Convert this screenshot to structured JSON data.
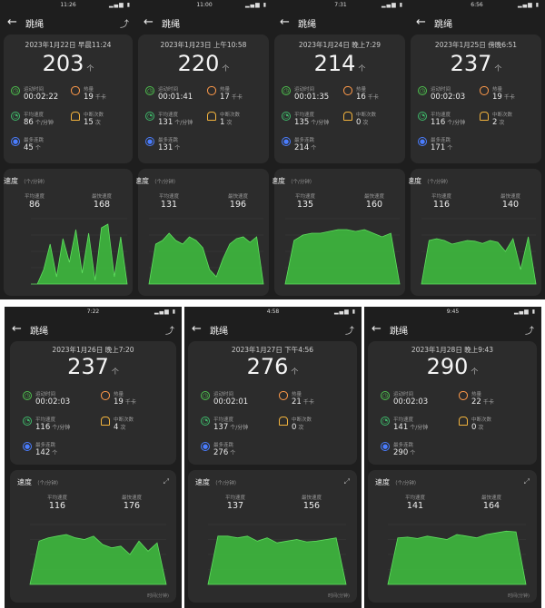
{
  "app": {
    "title": "跳绳"
  },
  "labels": {
    "duration": "运动时间",
    "calories": "热量",
    "avg_speed": "平均速度",
    "interruptions": "中断次数",
    "max_streak": "最多连跳",
    "speed_title": "速度",
    "speed_unit": "（个/分钟）",
    "avg_label": "平均速度",
    "max_label": "最快速度",
    "per_min": "个/分钟",
    "count_unit": "个",
    "kcal": "千卡",
    "times": "次",
    "x_axis_unit": "时间(分钟)",
    "y_axis_unit": "速度"
  },
  "sessions": [
    {
      "time": "11:26",
      "date": "2023年1月22日 早晨11:24",
      "count": "203",
      "duration": "00:02:22",
      "calories": "19",
      "avg_speed": "86",
      "interruptions": "15",
      "max_streak": "45",
      "chart_avg": "86",
      "chart_max": "168",
      "chart_data": {
        "type": "area",
        "x_unit": "分钟",
        "y_max": 180,
        "values": [
          0,
          0,
          40,
          110,
          20,
          125,
          60,
          150,
          30,
          140,
          10,
          155,
          165,
          20,
          130,
          0
        ]
      }
    },
    {
      "time": "11:00",
      "date": "2023年1月23日 上午10:58",
      "count": "220",
      "duration": "00:01:41",
      "calories": "17",
      "avg_speed": "131",
      "interruptions": "1",
      "max_streak": "131",
      "chart_avg": "131",
      "chart_max": "196",
      "chart_data": {
        "type": "area",
        "values": [
          0,
          110,
          120,
          140,
          120,
          110,
          130,
          120,
          100,
          40,
          20,
          70,
          110,
          125,
          130,
          115,
          130,
          0
        ]
      }
    },
    {
      "time": "7:31",
      "date": "2023年1月24日 晚上7:29",
      "count": "214",
      "duration": "00:01:35",
      "calories": "16",
      "avg_speed": "135",
      "interruptions": "0",
      "max_streak": "214",
      "chart_avg": "135",
      "chart_max": "160",
      "chart_data": {
        "type": "area",
        "values": [
          0,
          120,
          135,
          140,
          140,
          145,
          150,
          150,
          145,
          150,
          140,
          130,
          140,
          0
        ]
      }
    },
    {
      "time": "6:56",
      "date": "2023年1月25日 傍晚6:51",
      "count": "237",
      "duration": "00:02:03",
      "calories": "19",
      "avg_speed": "116",
      "interruptions": "2",
      "max_streak": "171",
      "chart_avg": "116",
      "chart_max": "140",
      "chart_data": {
        "type": "area",
        "values": [
          0,
          120,
          125,
          120,
          110,
          115,
          120,
          118,
          112,
          120,
          115,
          90,
          125,
          40,
          130,
          0
        ]
      }
    },
    {
      "time": "7:22",
      "date": "2023年1月26日 晚上7:20",
      "count": "237",
      "duration": "00:02:03",
      "calories": "19",
      "avg_speed": "116",
      "interruptions": "4",
      "max_streak": "142",
      "chart_avg": "116",
      "chart_max": "176",
      "chart_data": {
        "type": "area",
        "values": [
          0,
          130,
          140,
          145,
          150,
          140,
          135,
          145,
          120,
          110,
          115,
          90,
          130,
          100,
          125,
          0
        ]
      }
    },
    {
      "time": "4:58",
      "date": "2023年1月27日 下午4:56",
      "count": "276",
      "duration": "00:02:01",
      "calories": "21",
      "avg_speed": "137",
      "interruptions": "0",
      "max_streak": "276",
      "chart_avg": "137",
      "chart_max": "156",
      "chart_data": {
        "type": "area",
        "values": [
          0,
          145,
          145,
          140,
          145,
          130,
          140,
          125,
          130,
          135,
          128,
          130,
          135,
          140,
          0
        ]
      }
    },
    {
      "time": "9:45",
      "date": "2023年1月28日 晚上9:43",
      "count": "290",
      "duration": "00:02:03",
      "calories": "22",
      "avg_speed": "141",
      "interruptions": "0",
      "max_streak": "290",
      "chart_avg": "141",
      "chart_max": "164",
      "chart_data": {
        "type": "area",
        "values": [
          0,
          140,
          142,
          138,
          145,
          140,
          135,
          150,
          145,
          140,
          150,
          155,
          160,
          158,
          0
        ]
      }
    }
  ],
  "colors": {
    "accent": "#3fc23f",
    "bg": "#1e1e1e",
    "card": "#2c2c2c"
  },
  "icons": {
    "back": "arrow-left-icon",
    "share": "share-icon",
    "expand": "expand-icon"
  }
}
